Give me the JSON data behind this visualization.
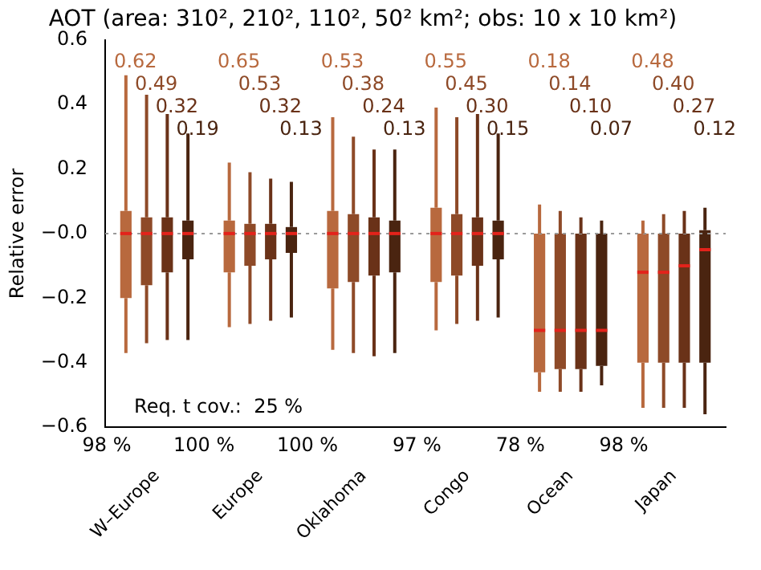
{
  "chart_data": {
    "type": "box",
    "title": "AOT (area: 310², 210², 110², 50² km²; obs: 10 x 10 km²)",
    "ylabel": "Relative error",
    "categories": [
      "W–Europe",
      "Europe",
      "Oklahoma",
      "Congo",
      "Ocean",
      "Japan"
    ],
    "series": [
      {
        "color": "#b8693e",
        "value_labels": [
          "0.62",
          "0.65",
          "0.53",
          "0.55",
          "0.18",
          "0.48"
        ],
        "boxes": [
          {
            "low": -0.37,
            "q1": -0.2,
            "median": 0,
            "q3": 0.07,
            "high": 0.49
          },
          {
            "low": -0.29,
            "q1": -0.12,
            "median": 0,
            "q3": 0.04,
            "high": 0.22
          },
          {
            "low": -0.36,
            "q1": -0.17,
            "median": 0,
            "q3": 0.07,
            "high": 0.36
          },
          {
            "low": -0.3,
            "q1": -0.15,
            "median": 0,
            "q3": 0.08,
            "high": 0.39
          },
          {
            "low": -0.49,
            "q1": -0.43,
            "median": -0.3,
            "q3": 0,
            "high": 0.09
          },
          {
            "low": -0.54,
            "q1": -0.4,
            "median": -0.12,
            "q3": 0,
            "high": 0.04
          }
        ]
      },
      {
        "color": "#8e4a28",
        "value_labels": [
          "0.49",
          "0.53",
          "0.38",
          "0.45",
          "0.14",
          "0.40"
        ],
        "boxes": [
          {
            "low": -0.34,
            "q1": -0.16,
            "median": 0,
            "q3": 0.05,
            "high": 0.43
          },
          {
            "low": -0.28,
            "q1": -0.1,
            "median": 0,
            "q3": 0.03,
            "high": 0.19
          },
          {
            "low": -0.37,
            "q1": -0.15,
            "median": 0,
            "q3": 0.06,
            "high": 0.3
          },
          {
            "low": -0.28,
            "q1": -0.13,
            "median": 0,
            "q3": 0.06,
            "high": 0.36
          },
          {
            "low": -0.49,
            "q1": -0.42,
            "median": -0.3,
            "q3": 0,
            "high": 0.07
          },
          {
            "low": -0.54,
            "q1": -0.4,
            "median": -0.12,
            "q3": 0,
            "high": 0.06
          }
        ]
      },
      {
        "color": "#6a3218",
        "value_labels": [
          "0.32",
          "0.32",
          "0.24",
          "0.30",
          "0.10",
          "0.27"
        ],
        "boxes": [
          {
            "low": -0.33,
            "q1": -0.12,
            "median": 0,
            "q3": 0.05,
            "high": 0.37
          },
          {
            "low": -0.27,
            "q1": -0.08,
            "median": 0,
            "q3": 0.03,
            "high": 0.17
          },
          {
            "low": -0.38,
            "q1": -0.13,
            "median": 0,
            "q3": 0.05,
            "high": 0.26
          },
          {
            "low": -0.27,
            "q1": -0.1,
            "median": 0,
            "q3": 0.05,
            "high": 0.37
          },
          {
            "low": -0.49,
            "q1": -0.42,
            "median": -0.3,
            "q3": 0,
            "high": 0.05
          },
          {
            "low": -0.54,
            "q1": -0.4,
            "median": -0.1,
            "q3": 0,
            "high": 0.07
          }
        ]
      },
      {
        "color": "#4a2410",
        "value_labels": [
          "0.19",
          "0.13",
          "0.13",
          "0.15",
          "0.07",
          "0.12"
        ],
        "boxes": [
          {
            "low": -0.33,
            "q1": -0.08,
            "median": 0,
            "q3": 0.04,
            "high": 0.31
          },
          {
            "low": -0.26,
            "q1": -0.06,
            "median": 0,
            "q3": 0.02,
            "high": 0.16
          },
          {
            "low": -0.37,
            "q1": -0.12,
            "median": 0,
            "q3": 0.04,
            "high": 0.26
          },
          {
            "low": -0.26,
            "q1": -0.08,
            "median": 0,
            "q3": 0.04,
            "high": 0.31
          },
          {
            "low": -0.47,
            "q1": -0.41,
            "median": -0.3,
            "q3": 0,
            "high": 0.04
          },
          {
            "low": -0.56,
            "q1": -0.4,
            "median": -0.05,
            "q3": 0.01,
            "high": 0.08
          }
        ]
      }
    ],
    "ylim": [
      -0.6,
      0.6
    ],
    "yticks": [
      {
        "value": -0.6,
        "label": "−0.6"
      },
      {
        "value": -0.4,
        "label": "−0.4"
      },
      {
        "value": -0.2,
        "label": "−0.2"
      },
      {
        "value": 0,
        "label": "−0.0"
      },
      0.2,
      0.4,
      0.6
    ],
    "ref_lines": [
      {
        "axis": "y",
        "value": 0,
        "color": "#999999",
        "line_style": "dotted"
      }
    ],
    "annotations": [
      "Req. t cov.:  25 %",
      "98 %",
      "100 %",
      "100 %",
      "97 %",
      "78 %",
      "98 %"
    ],
    "grid": false,
    "legend": false
  }
}
